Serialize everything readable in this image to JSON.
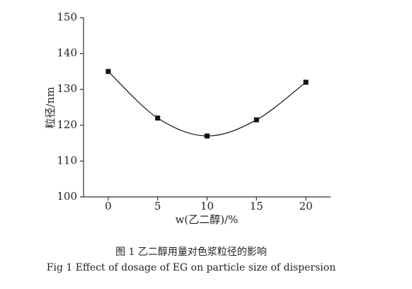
{
  "chart_data": {
    "type": "scatter",
    "connect": "smooth",
    "x_label": "w(乙二醇)/%",
    "y_label": "粒径/nm",
    "caption_cn": "图 1  乙二醇用量对色浆粒径的影响",
    "caption_en": "Fig 1   Effect of dosage of EG on particle size of dispersion",
    "x": [
      0,
      5,
      10,
      15,
      20
    ],
    "values": [
      135,
      122,
      117,
      121.5,
      132
    ],
    "color": "#111111",
    "xlim": [
      -2.5,
      22.5
    ],
    "xticks": [
      0,
      5,
      10,
      15,
      20
    ],
    "ylim": [
      100,
      150
    ],
    "yticks": [
      100,
      110,
      120,
      130,
      140,
      150
    ]
  }
}
